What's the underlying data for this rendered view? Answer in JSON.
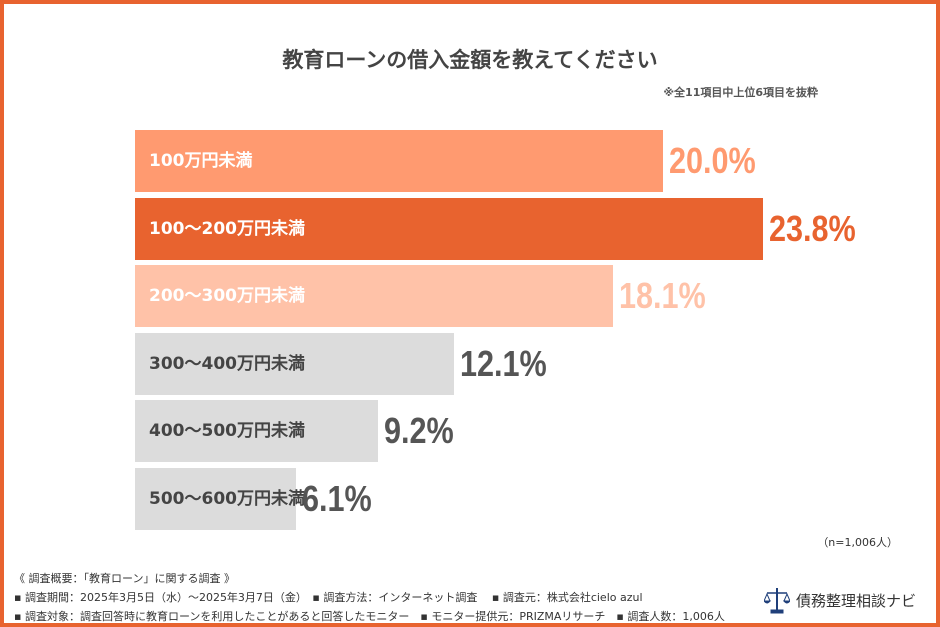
{
  "chart_data": {
    "type": "bar",
    "orientation": "horizontal",
    "title": "教育ローンの借入金額を教えてください",
    "note": "※全11項目中上位6項目を抜粋",
    "categories": [
      "100万円未満",
      "100〜200万円未満",
      "200〜300万円未満",
      "300〜400万円未満",
      "400〜500万円未満",
      "500〜600万円未満"
    ],
    "values": [
      20.0,
      23.8,
      18.1,
      12.1,
      9.2,
      6.1
    ],
    "value_labels": [
      "20.0%",
      "23.8%",
      "18.1%",
      "12.1%",
      "9.2%",
      "6.1%"
    ],
    "unit": "%",
    "colors": [
      "#ff9a70",
      "#e8632f",
      "#ffc2a8",
      "#dcdcdc",
      "#dcdcdc",
      "#dcdcdc"
    ],
    "label_colors": [
      "#ffffff",
      "#ffffff",
      "#ffffff",
      "#444444",
      "#444444",
      "#444444"
    ],
    "value_colors": [
      "#ff9a70",
      "#e8632f",
      "#ffc2a8",
      "#555555",
      "#555555",
      "#555555"
    ],
    "sample": "（n=1,006人）"
  },
  "footer": {
    "line1": "《 調査概要：「教育ローン」に関する調査 》",
    "line2": "▪ 調査期間：2025年3月5日（水）〜2025年3月7日（金）　▪ 調査方法：インターネット調査　 ▪ 調査元：株式会社cielo azul",
    "line3": "▪ 調査対象：調査回答時に教育ローンを利用したことがあると回答したモニター　▪ モニター提供元：PRIZMAリサーチ　▪ 調査人数：1,006人"
  },
  "logo": {
    "text": "債務整理相談ナビ",
    "icon": "scales-icon",
    "color": "#1f3f7a"
  }
}
